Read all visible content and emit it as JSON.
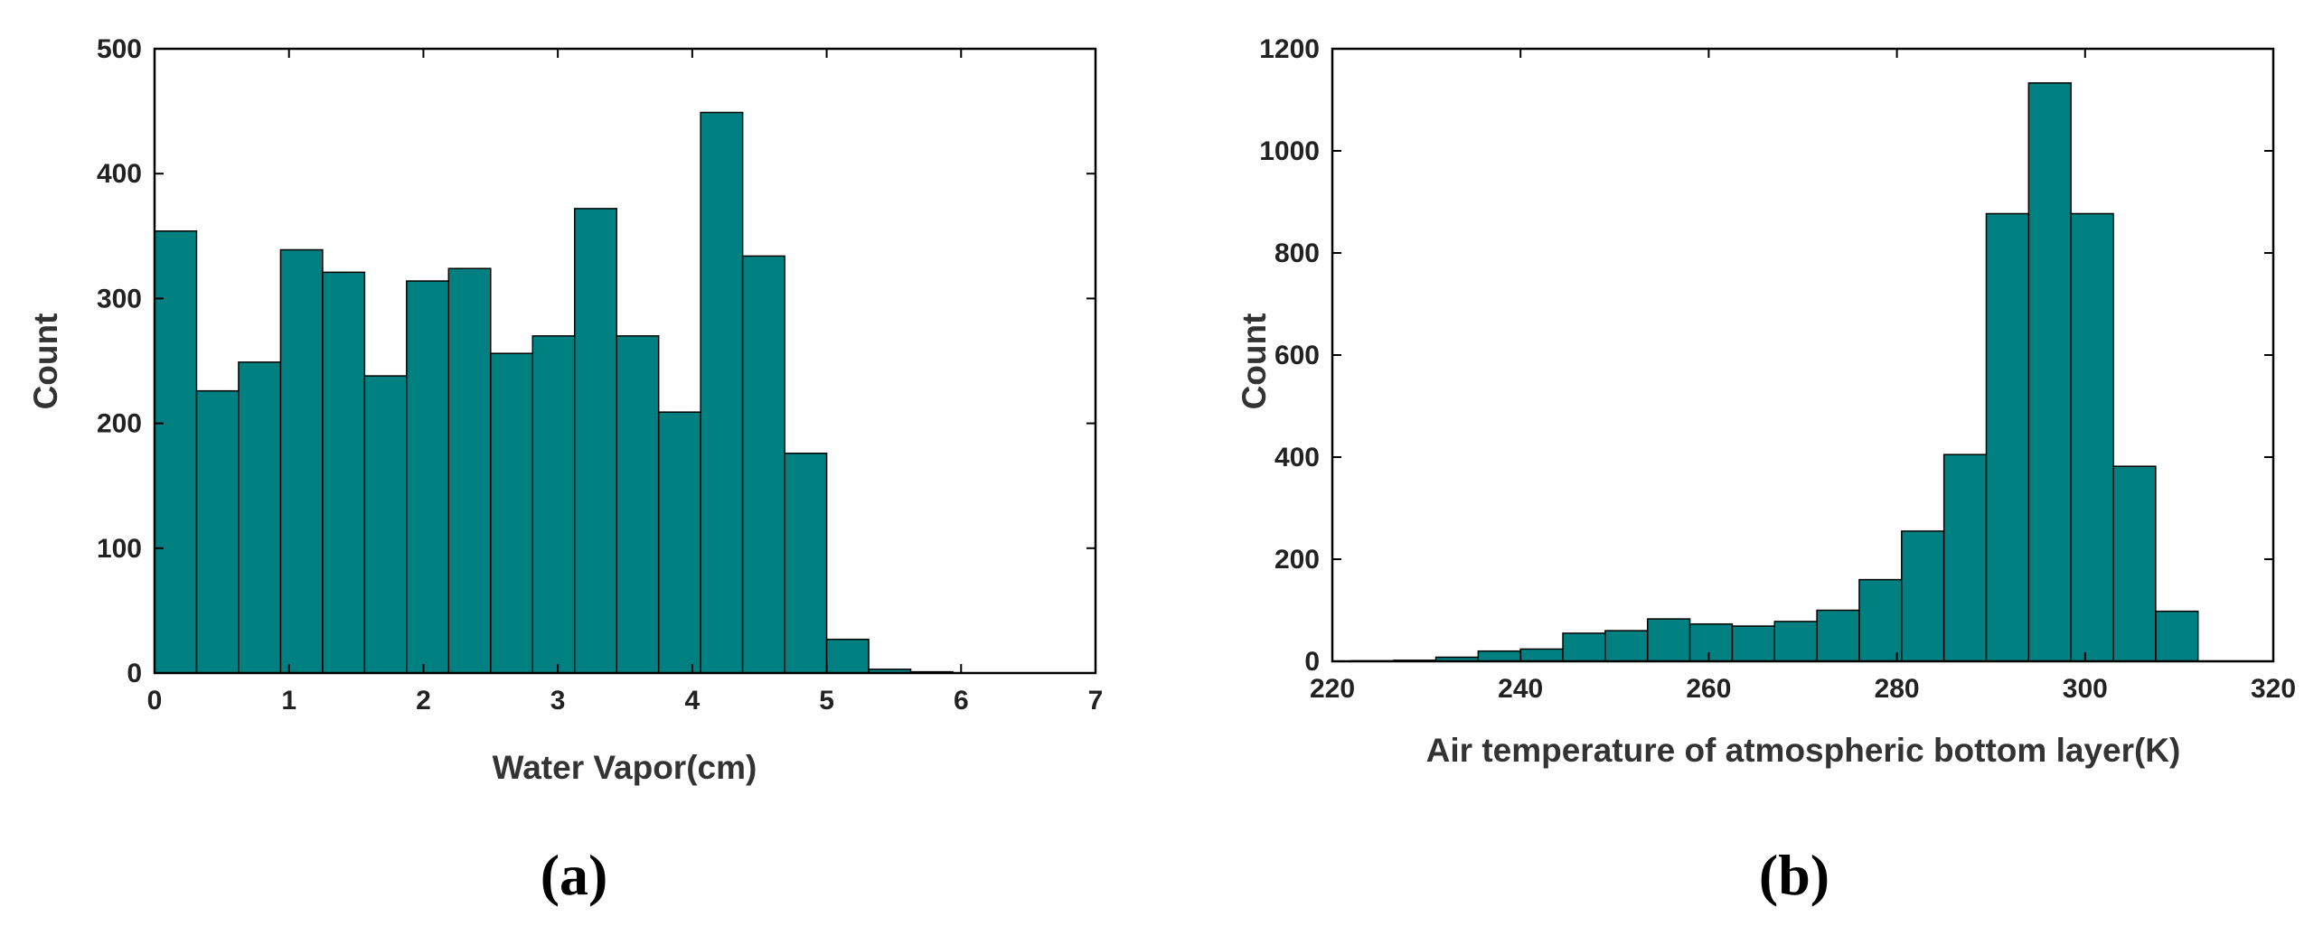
{
  "chart_data": [
    {
      "type": "bar",
      "panel_label": "(a)",
      "title": "",
      "xlabel": "Water Vapor(cm)",
      "ylabel": "Count",
      "xlim": [
        0,
        7
      ],
      "ylim": [
        0,
        500
      ],
      "xticks": [
        "0",
        "1",
        "2",
        "3",
        "4",
        "5",
        "6",
        "7"
      ],
      "yticks": [
        "0",
        "100",
        "200",
        "300",
        "400",
        "500"
      ],
      "bin_width": 0.3125,
      "bins_start": 0,
      "values": [
        354,
        226,
        249,
        339,
        321,
        238,
        314,
        324,
        256,
        270,
        372,
        270,
        209,
        449,
        334,
        176,
        27,
        3,
        1,
        0,
        0,
        0
      ],
      "color": "#008080",
      "grid": false
    },
    {
      "type": "bar",
      "panel_label": "(b)",
      "title": "",
      "xlabel": "Air temperature of atmospheric bottom layer(K)",
      "ylabel": "Count",
      "xlim": [
        220,
        320
      ],
      "ylim": [
        0,
        1200
      ],
      "xticks": [
        "220",
        "240",
        "260",
        "280",
        "300",
        "320"
      ],
      "yticks": [
        "0",
        "200",
        "400",
        "600",
        "800",
        "1000",
        "1200"
      ],
      "bin_width": 4.5,
      "bins_start": 222,
      "values": [
        1,
        2,
        8,
        20,
        24,
        55,
        60,
        83,
        73,
        69,
        78,
        100,
        160,
        255,
        405,
        877,
        1133,
        877,
        382,
        98
      ],
      "color": "#008080",
      "grid": false
    }
  ]
}
